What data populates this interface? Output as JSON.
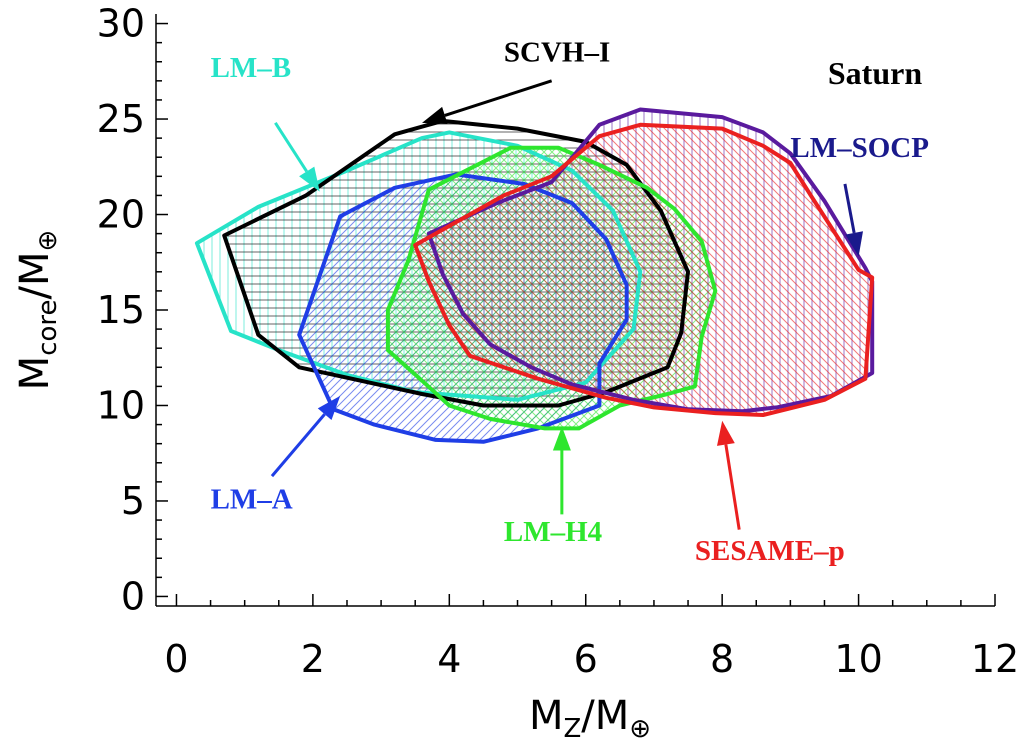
{
  "chart_data": {
    "type": "line",
    "title": "Saturn",
    "xlabel": {
      "main": "M",
      "sub": "Z",
      "sep": "/M",
      "sym": "⊕"
    },
    "ylabel": {
      "main": "M",
      "sub": "core",
      "sep": "/M",
      "sym": "⊕"
    },
    "xlim": [
      -0.3,
      12
    ],
    "ylim": [
      -0.5,
      30.5
    ],
    "xticks": [
      0,
      2,
      4,
      6,
      8,
      10,
      12
    ],
    "yticks": [
      0,
      5,
      10,
      15,
      20,
      25,
      30
    ],
    "x_tick_labels": [
      "0",
      "2",
      "4",
      "6",
      "8",
      "10",
      "12"
    ],
    "y_tick_labels": [
      "0",
      "5",
      "10",
      "15",
      "20",
      "25",
      "30"
    ],
    "grid": false,
    "series": [
      {
        "name": "LM-B",
        "color": "#27e3c8",
        "hatch": "vertical",
        "polygon": [
          [
            0.3,
            18.5
          ],
          [
            1.2,
            20.4
          ],
          [
            2.5,
            22.3
          ],
          [
            3.6,
            24.0
          ],
          [
            4.0,
            24.3
          ],
          [
            5.0,
            23.6
          ],
          [
            5.8,
            22.3
          ],
          [
            6.4,
            20.2
          ],
          [
            6.8,
            17.0
          ],
          [
            6.7,
            14.0
          ],
          [
            6.0,
            11.2
          ],
          [
            5.0,
            10.3
          ],
          [
            3.5,
            10.7
          ],
          [
            2.5,
            11.6
          ],
          [
            1.5,
            12.9
          ],
          [
            0.8,
            13.9
          ]
        ]
      },
      {
        "name": "SCVH-I",
        "color": "#000000",
        "hatch": "horizontal",
        "polygon": [
          [
            0.7,
            18.9
          ],
          [
            1.9,
            21.0
          ],
          [
            3.2,
            24.2
          ],
          [
            3.9,
            24.9
          ],
          [
            5.0,
            24.5
          ],
          [
            6.0,
            23.8
          ],
          [
            6.6,
            22.6
          ],
          [
            7.1,
            20.2
          ],
          [
            7.5,
            17.0
          ],
          [
            7.4,
            13.8
          ],
          [
            7.2,
            12.0
          ],
          [
            6.3,
            10.7
          ],
          [
            5.6,
            10.0
          ],
          [
            4.5,
            10.0
          ],
          [
            3.6,
            10.6
          ],
          [
            1.8,
            12.0
          ],
          [
            1.2,
            13.7
          ]
        ]
      },
      {
        "name": "LM-A",
        "color": "#1f3ee6",
        "hatch": "diagonal",
        "polygon": [
          [
            2.4,
            19.9
          ],
          [
            3.2,
            21.4
          ],
          [
            4.1,
            22.1
          ],
          [
            5.1,
            21.6
          ],
          [
            5.8,
            20.6
          ],
          [
            6.3,
            18.7
          ],
          [
            6.6,
            16.3
          ],
          [
            6.6,
            14.5
          ],
          [
            6.2,
            12.2
          ],
          [
            6.2,
            10.0
          ],
          [
            5.3,
            8.8
          ],
          [
            4.5,
            8.1
          ],
          [
            3.8,
            8.2
          ],
          [
            2.9,
            9.0
          ],
          [
            2.3,
            9.8
          ],
          [
            1.8,
            13.7
          ]
        ]
      },
      {
        "name": "LM-H4",
        "color": "#2ee62e",
        "hatch": "diagonal-cross",
        "polygon": [
          [
            3.7,
            21.3
          ],
          [
            4.3,
            22.4
          ],
          [
            4.9,
            23.5
          ],
          [
            5.6,
            23.5
          ],
          [
            6.2,
            22.6
          ],
          [
            6.9,
            21.4
          ],
          [
            7.3,
            20.3
          ],
          [
            7.7,
            18.6
          ],
          [
            7.9,
            16.0
          ],
          [
            7.7,
            13.6
          ],
          [
            7.6,
            11.0
          ],
          [
            7.2,
            10.6
          ],
          [
            6.5,
            10.0
          ],
          [
            5.9,
            8.8
          ],
          [
            5.4,
            8.8
          ],
          [
            4.6,
            9.3
          ],
          [
            4.0,
            10.0
          ],
          [
            3.6,
            11.3
          ],
          [
            3.1,
            12.9
          ],
          [
            3.1,
            15.0
          ],
          [
            3.4,
            17.6
          ]
        ]
      },
      {
        "name": "LM-SOCP",
        "color": "#5a1a9e",
        "hatch": "vertical",
        "polygon": [
          [
            3.7,
            19.0
          ],
          [
            4.7,
            20.6
          ],
          [
            5.5,
            21.7
          ],
          [
            6.2,
            24.7
          ],
          [
            6.8,
            25.5
          ],
          [
            8.0,
            25.1
          ],
          [
            8.6,
            24.3
          ],
          [
            9.0,
            23.2
          ],
          [
            9.5,
            20.7
          ],
          [
            10.1,
            17.2
          ],
          [
            10.2,
            16.5
          ],
          [
            10.2,
            11.7
          ],
          [
            9.6,
            10.5
          ],
          [
            8.8,
            9.9
          ],
          [
            8.3,
            9.7
          ],
          [
            7.5,
            9.8
          ],
          [
            6.7,
            10.3
          ],
          [
            5.8,
            11.1
          ],
          [
            5.2,
            12.0
          ],
          [
            4.6,
            13.2
          ],
          [
            4.2,
            14.8
          ],
          [
            3.9,
            16.9
          ]
        ]
      },
      {
        "name": "SESAME-p",
        "color": "#ea2020",
        "hatch": "diagonal-back",
        "polygon": [
          [
            3.5,
            18.4
          ],
          [
            4.2,
            19.8
          ],
          [
            4.8,
            21.0
          ],
          [
            5.5,
            22.0
          ],
          [
            6.2,
            24.1
          ],
          [
            6.8,
            24.7
          ],
          [
            8.0,
            24.5
          ],
          [
            8.6,
            23.6
          ],
          [
            9.0,
            22.7
          ],
          [
            9.3,
            21.0
          ],
          [
            10.0,
            17.1
          ],
          [
            10.2,
            16.7
          ],
          [
            10.1,
            11.4
          ],
          [
            9.5,
            10.3
          ],
          [
            8.6,
            9.5
          ],
          [
            7.9,
            9.6
          ],
          [
            7.0,
            9.9
          ],
          [
            6.3,
            10.4
          ],
          [
            5.3,
            11.4
          ],
          [
            4.3,
            12.6
          ],
          [
            4.0,
            14.2
          ],
          [
            3.7,
            16.5
          ]
        ]
      }
    ],
    "annotations": [
      {
        "text": "LM-B",
        "color": "#27e3c8",
        "label_at": [
          0.5,
          27.2
        ],
        "arrow_from": [
          1.45,
          24.8
        ],
        "arrow_to": [
          2.1,
          21.2
        ]
      },
      {
        "text": "SCVH-I",
        "color": "#000000",
        "label_at": [
          4.8,
          28.0
        ],
        "arrow_from": [
          5.5,
          27.0
        ],
        "arrow_to": [
          3.6,
          24.8
        ]
      },
      {
        "text": "LM-SOCP",
        "color": "#1a1a8c",
        "label_at": [
          9.0,
          23.0
        ],
        "arrow_from": [
          9.8,
          21.6
        ],
        "arrow_to": [
          10.0,
          17.8
        ]
      },
      {
        "text": "LM-A",
        "color": "#1f3ee6",
        "label_at": [
          0.5,
          4.6
        ],
        "arrow_from": [
          1.4,
          6.3
        ],
        "arrow_to": [
          2.4,
          10.5
        ]
      },
      {
        "text": "LM-H4",
        "color": "#2ee62e",
        "label_at": [
          4.8,
          2.9
        ],
        "arrow_from": [
          5.65,
          4.3
        ],
        "arrow_to": [
          5.65,
          8.9
        ]
      },
      {
        "text": "SESAME-p",
        "color": "#ea2020",
        "label_at": [
          7.6,
          1.9
        ],
        "arrow_from": [
          8.25,
          3.5
        ],
        "arrow_to": [
          8.0,
          9.2
        ]
      }
    ]
  }
}
